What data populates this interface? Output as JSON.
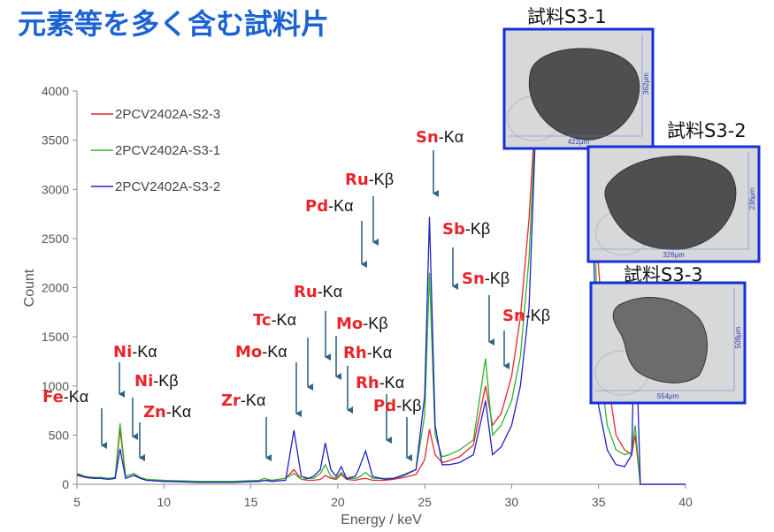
{
  "chart_data": {
    "type": "line",
    "title": "元素等を多く含む試料片",
    "x_label": "Energy / keV",
    "y_label": "Count",
    "xlim": [
      5,
      40
    ],
    "xticks": [
      5,
      10,
      15,
      20,
      25,
      30,
      35,
      40
    ],
    "ylim": [
      0,
      4000
    ],
    "yticks": [
      0,
      500,
      1000,
      1500,
      2000,
      2500,
      3000,
      3500,
      4000
    ],
    "x": [
      5,
      5.5,
      6,
      6.4,
      6.8,
      7.2,
      7.48,
      7.8,
      8.26,
      8.64,
      9,
      10,
      12,
      14,
      15.5,
      15.77,
      16.2,
      17,
      17.48,
      17.9,
      18.3,
      18.6,
      19,
      19.28,
      19.6,
      19.9,
      20.2,
      20.5,
      21,
      21.2,
      21.6,
      22,
      22.7,
      23.2,
      23.8,
      24.5,
      25,
      25.27,
      25.6,
      26,
      26.4,
      27,
      27.8,
      28.5,
      28.9,
      29.4,
      30,
      30.5,
      31,
      31.5,
      32,
      33,
      34,
      34.5,
      35,
      35.5,
      36,
      36.5,
      36.9,
      37.1,
      37.4,
      38,
      39,
      40
    ],
    "series": [
      {
        "name": "2PCV2402A-S2-3",
        "color": "#e8252b",
        "values": [
          90,
          70,
          60,
          60,
          50,
          60,
          560,
          80,
          110,
          60,
          40,
          30,
          30,
          30,
          30,
          40,
          40,
          60,
          150,
          50,
          40,
          40,
          50,
          90,
          60,
          50,
          100,
          50,
          40,
          50,
          60,
          40,
          40,
          50,
          70,
          100,
          250,
          560,
          300,
          220,
          240,
          280,
          400,
          1000,
          600,
          720,
          1100,
          1700,
          2700,
          4200,
          4200,
          4200,
          4200,
          4200,
          2200,
          1100,
          500,
          350,
          300,
          500,
          0,
          0,
          0,
          0
        ]
      },
      {
        "name": "2PCV2402A-S3-1",
        "color": "#2db52d",
        "values": [
          110,
          80,
          70,
          70,
          60,
          70,
          620,
          80,
          110,
          70,
          50,
          40,
          30,
          30,
          40,
          60,
          40,
          60,
          110,
          50,
          60,
          60,
          110,
          200,
          80,
          60,
          120,
          60,
          60,
          70,
          120,
          60,
          60,
          60,
          100,
          150,
          700,
          2150,
          500,
          280,
          300,
          350,
          450,
          1280,
          500,
          600,
          850,
          1300,
          2300,
          4200,
          4200,
          4200,
          4200,
          4200,
          1300,
          600,
          350,
          300,
          330,
          600,
          0,
          0,
          0,
          0
        ]
      },
      {
        "name": "2PCV2402A-S3-2",
        "color": "#2020c8",
        "values": [
          100,
          70,
          60,
          60,
          50,
          60,
          360,
          60,
          90,
          60,
          40,
          30,
          20,
          20,
          30,
          40,
          30,
          40,
          550,
          80,
          60,
          80,
          150,
          420,
          150,
          80,
          180,
          60,
          80,
          150,
          340,
          80,
          50,
          60,
          90,
          150,
          900,
          2720,
          600,
          200,
          200,
          220,
          300,
          850,
          300,
          380,
          600,
          1000,
          1800,
          4200,
          4200,
          4200,
          4200,
          3500,
          800,
          350,
          200,
          180,
          300,
          1800,
          0,
          0,
          0,
          0
        ]
      }
    ],
    "annotations": [
      {
        "element": "Fe",
        "line": "-Kα"
      },
      {
        "element": "Ni",
        "line": "-Kα"
      },
      {
        "element": "Ni",
        "line": "-Kβ"
      },
      {
        "element": "Zn",
        "line": "-Kα"
      },
      {
        "element": "Zr",
        "line": "-Kα"
      },
      {
        "element": "Mo",
        "line": "-Kα"
      },
      {
        "element": "Tc",
        "line": "-Kα"
      },
      {
        "element": "Ru",
        "line": "-Kα"
      },
      {
        "element": "Mo",
        "line": "-Kβ"
      },
      {
        "element": "Rh",
        "line": "-Kα"
      },
      {
        "element": "Rh",
        "line": "-Kα"
      },
      {
        "element": "Pd",
        "line": "-Kβ"
      },
      {
        "element": "Pd",
        "line": "-Kα"
      },
      {
        "element": "Ru",
        "line": "-Kβ"
      },
      {
        "element": "Sn",
        "line": "-Kα"
      },
      {
        "element": "Sb",
        "line": "-Kβ"
      },
      {
        "element": "Sn",
        "line": "-Kβ"
      },
      {
        "element": "Sn",
        "line": "-Kβ"
      }
    ],
    "images": [
      {
        "label": "試料S3-1",
        "width_label": "422μm",
        "height_label": "362μm"
      },
      {
        "label": "試料S3-2",
        "width_label": "326μm",
        "height_label": "236μm"
      },
      {
        "label": "試料S3-3",
        "width_label": "554μm",
        "height_label": "508μm"
      }
    ]
  }
}
